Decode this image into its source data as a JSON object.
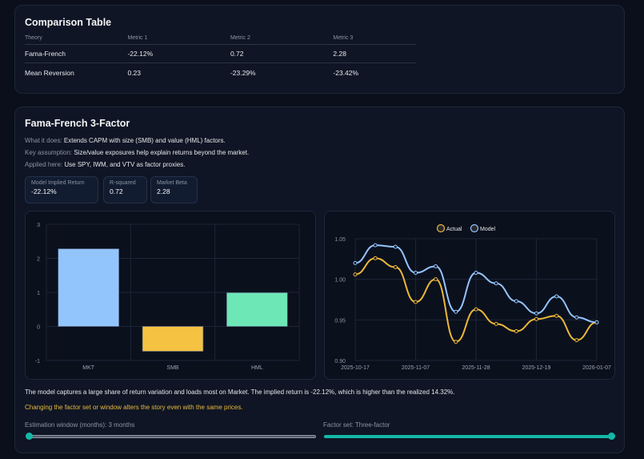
{
  "comparison": {
    "title": "Comparison Table",
    "headers": [
      "Theory",
      "Metric 1",
      "Metric 2",
      "Metric 3"
    ],
    "rows": [
      [
        "Fama-French",
        "-22.12%",
        "0.72",
        "2.28"
      ],
      [
        "Mean Reversion",
        "0.23",
        "-23.29%",
        "-23.42%"
      ]
    ]
  },
  "model": {
    "title": "Fama-French 3-Factor",
    "what_label": "What it does:",
    "what": "Extends CAPM with size (SMB) and value (HML) factors.",
    "assump_label": "Key assumption:",
    "assump": "Size/value exposures help explain returns beyond the market.",
    "applied_label": "Applied here:",
    "applied": "Use SPY, IWM, and VTV as factor proxies.",
    "metrics": [
      {
        "label": "Model Implied Return",
        "value": "-22.12%"
      },
      {
        "label": "R-squared",
        "value": "0.72"
      },
      {
        "label": "Market Beta",
        "value": "2.28"
      }
    ],
    "summary": "The model captures a large share of return variation and loads most on Market. The implied return is -22.12%, which is higher than the realized 14.32%.",
    "note": "Changing the factor set or window alters the story even with the same prices.",
    "window_label": "Estimation window (months): 3 months",
    "window_value": 0,
    "factor_label": "Factor set: Three-factor",
    "factor_value": 1,
    "colors": {
      "accent": "#14b8a6",
      "note": "#e8b93c"
    }
  },
  "chart_data": [
    {
      "type": "bar",
      "categories": [
        "MKT",
        "SMB",
        "HML"
      ],
      "values": [
        2.28,
        -0.73,
        0.99
      ],
      "colors": [
        "#93c5fd",
        "#f5c242",
        "#6ee7b7"
      ],
      "ylim": [
        -1,
        3
      ],
      "yticks": [
        -1,
        0,
        1,
        2,
        3
      ],
      "grid": true
    },
    {
      "type": "line",
      "x_ticks": [
        "2025-10-17",
        "2025-11-07",
        "2025-11-28",
        "2025-12-19",
        "2026-01-07"
      ],
      "ylim": [
        0.9,
        1.05
      ],
      "yticks": [
        "0.90",
        "0.95",
        "1.00",
        "1.05"
      ],
      "legend": "top",
      "grid": true,
      "series": [
        {
          "name": "Actual",
          "color": "#eab838",
          "values": [
            1.006,
            1.026,
            1.015,
            0.972,
            1.0,
            0.923,
            0.963,
            0.945,
            0.936,
            0.951,
            0.955,
            0.925,
            0.947
          ]
        },
        {
          "name": "Model",
          "color": "#93c5fd",
          "values": [
            1.02,
            1.042,
            1.04,
            1.008,
            1.016,
            0.96,
            1.008,
            0.995,
            0.973,
            0.958,
            0.979,
            0.953,
            0.947
          ]
        }
      ]
    }
  ]
}
